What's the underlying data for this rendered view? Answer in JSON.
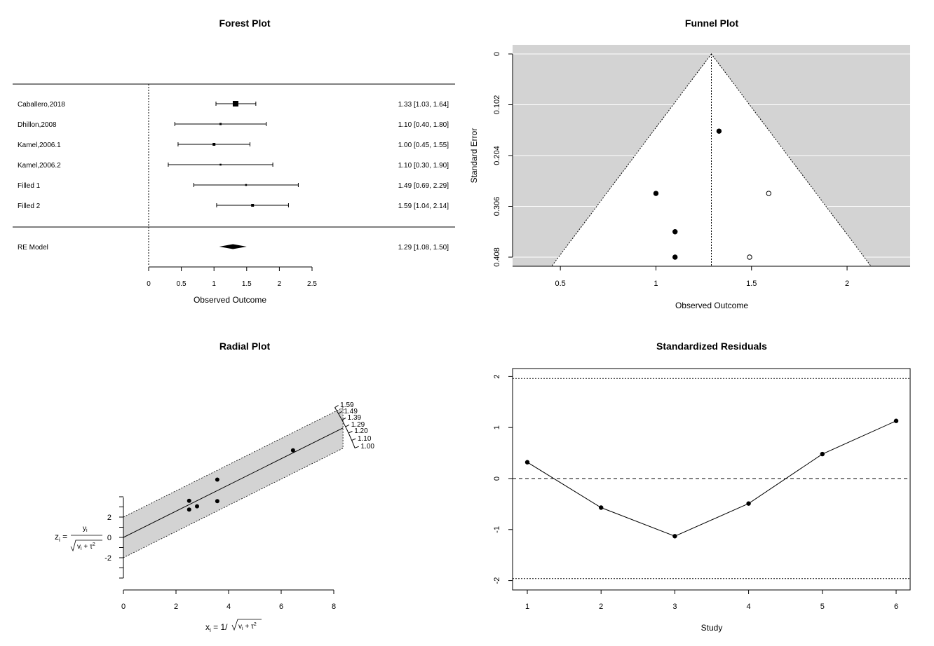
{
  "chart_data": [
    {
      "type": "forest",
      "title": "Forest Plot",
      "xlabel": "Observed Outcome",
      "xticks": [
        "0",
        "0.5",
        "1",
        "1.5",
        "2",
        "2.5"
      ],
      "xlim": [
        0,
        2.5
      ],
      "studies": [
        {
          "label": "Caballero,2018",
          "est": 1.33,
          "lo": 1.03,
          "hi": 1.64,
          "text": "1.33 [1.03, 1.64]",
          "box": 8
        },
        {
          "label": "Dhillon,2008",
          "est": 1.1,
          "lo": 0.4,
          "hi": 1.8,
          "text": "1.10 [0.40, 1.80]",
          "box": 3
        },
        {
          "label": "Kamel,2006.1",
          "est": 1.0,
          "lo": 0.45,
          "hi": 1.55,
          "text": "1.00 [0.45, 1.55]",
          "box": 4
        },
        {
          "label": "Kamel,2006.2",
          "est": 1.1,
          "lo": 0.3,
          "hi": 1.9,
          "text": "1.10 [0.30, 1.90]",
          "box": 2.6
        },
        {
          "label": "Filled 1",
          "est": 1.49,
          "lo": 0.69,
          "hi": 2.29,
          "text": "1.49 [0.69, 2.29]",
          "box": 2.6
        },
        {
          "label": "Filled 2",
          "est": 1.59,
          "lo": 1.04,
          "hi": 2.14,
          "text": "1.59 [1.04, 2.14]",
          "box": 4
        }
      ],
      "summary": {
        "label": "RE Model",
        "est": 1.29,
        "lo": 1.08,
        "hi": 1.5,
        "text": "1.29 [1.08, 1.50]"
      }
    },
    {
      "type": "scatter",
      "subtype": "funnel",
      "title": "Funnel Plot",
      "xlabel": "Observed Outcome",
      "ylabel": "Standard Error",
      "xticks": [
        "0.5",
        "1",
        "1.5",
        "2"
      ],
      "yticks": [
        "0",
        "0.102",
        "0.204",
        "0.306",
        "0.408"
      ],
      "xlim": [
        0.25,
        2.33
      ],
      "ylim": [
        0,
        0.4245
      ],
      "center": 1.29,
      "points": [
        {
          "x": 1.33,
          "y": 0.155,
          "filled": true
        },
        {
          "x": 1.0,
          "y": 0.28,
          "filled": true
        },
        {
          "x": 1.1,
          "y": 0.357,
          "filled": true
        },
        {
          "x": 1.1,
          "y": 0.408,
          "filled": true
        },
        {
          "x": 1.59,
          "y": 0.28,
          "filled": false
        },
        {
          "x": 1.49,
          "y": 0.408,
          "filled": false
        }
      ]
    },
    {
      "type": "scatter",
      "subtype": "radial",
      "title": "Radial Plot",
      "xlabel": "xi = 1/√(vi + τ²)",
      "ylabel": "zi = yi/√(vi + τ²)",
      "xticks": [
        "0",
        "2",
        "4",
        "6",
        "8"
      ],
      "yticks": [
        "2",
        "0",
        "-2"
      ],
      "xlim": [
        0,
        8
      ],
      "slope": 1.29,
      "points": [
        {
          "x": 6.45,
          "y": 8.57
        },
        {
          "x": 3.57,
          "y": 5.69
        },
        {
          "x": 2.5,
          "y": 3.6
        },
        {
          "x": 2.8,
          "y": 3.06
        },
        {
          "x": 3.57,
          "y": 3.57
        },
        {
          "x": 2.5,
          "y": 2.74
        }
      ],
      "arc_labels": [
        "1.59",
        "1.49",
        "1.39",
        "1.29",
        "1.20",
        "1.10",
        "1.00"
      ]
    },
    {
      "type": "line",
      "title": "Standardized Residuals",
      "xlabel": "Study",
      "xticks": [
        "1",
        "2",
        "3",
        "4",
        "5",
        "6"
      ],
      "yticks": [
        "2",
        "1",
        "0",
        "-1",
        "-2"
      ],
      "x": [
        1,
        2,
        3,
        4,
        5,
        6
      ],
      "values": [
        0.32,
        -0.57,
        -1.13,
        -0.49,
        0.48,
        1.13
      ],
      "ylim": [
        -2.15,
        2.15
      ],
      "reference_lines": [
        1.96,
        0,
        -1.96
      ]
    }
  ]
}
